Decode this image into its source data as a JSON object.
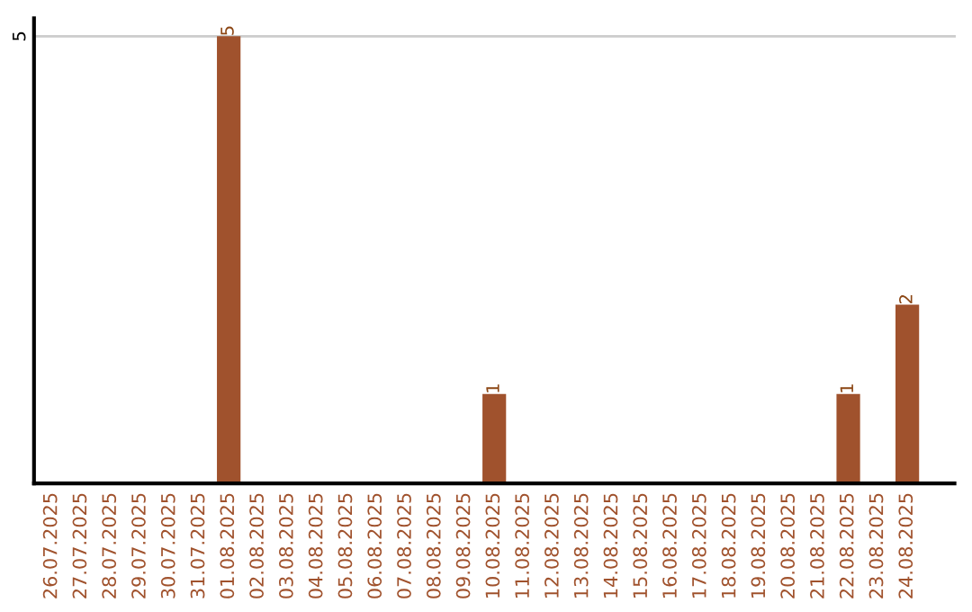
{
  "chart_data": {
    "type": "bar",
    "categories": [
      "26.07.2025",
      "27.07.2025",
      "28.07.2025",
      "29.07.2025",
      "30.07.2025",
      "31.07.2025",
      "01.08.2025",
      "02.08.2025",
      "03.08.2025",
      "04.08.2025",
      "05.08.2025",
      "06.08.2025",
      "07.08.2025",
      "08.08.2025",
      "09.08.2025",
      "10.08.2025",
      "11.08.2025",
      "12.08.2025",
      "13.08.2025",
      "14.08.2025",
      "15.08.2025",
      "16.08.2025",
      "17.08.2025",
      "18.08.2025",
      "19.08.2025",
      "20.08.2025",
      "21.08.2025",
      "22.08.2025",
      "23.08.2025",
      "24.08.2025"
    ],
    "values": [
      0,
      0,
      0,
      0,
      0,
      0,
      5,
      0,
      0,
      0,
      0,
      0,
      0,
      0,
      0,
      1,
      0,
      0,
      0,
      0,
      0,
      0,
      0,
      0,
      0,
      0,
      0,
      1,
      0,
      2
    ],
    "value_labels": [
      null,
      null,
      null,
      null,
      null,
      null,
      "5",
      null,
      null,
      null,
      null,
      null,
      null,
      null,
      null,
      "1",
      null,
      null,
      null,
      null,
      null,
      null,
      null,
      null,
      null,
      null,
      null,
      "1",
      null,
      "2"
    ],
    "color": "#a0522d",
    "ylim": [
      0,
      5.2
    ],
    "yticks": [
      5
    ],
    "grid": "y"
  }
}
